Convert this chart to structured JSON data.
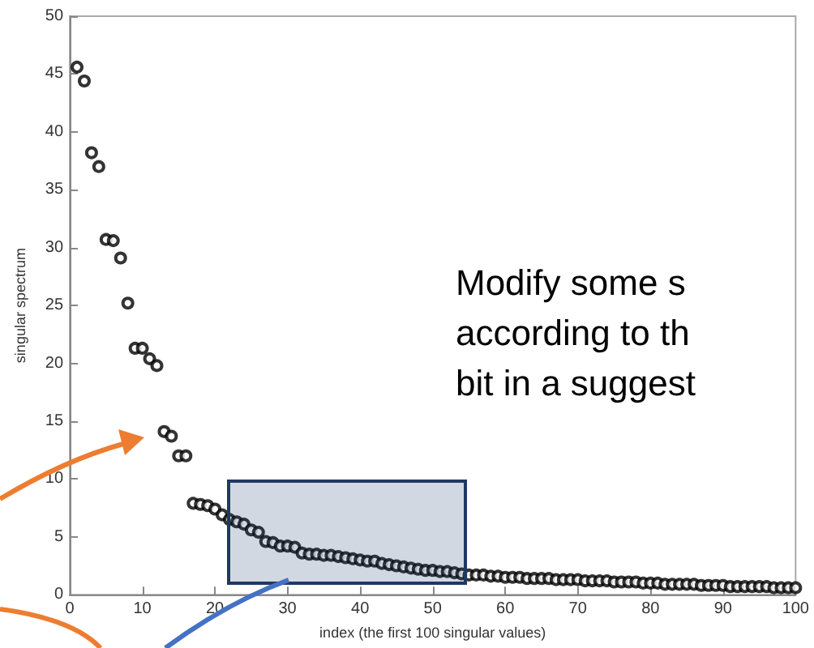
{
  "chart_data": {
    "type": "scatter",
    "xlabel": "index (the first 100 singular values)",
    "ylabel": "singular spectrum",
    "x": [
      1,
      2,
      3,
      4,
      5,
      6,
      7,
      8,
      9,
      10,
      11,
      12,
      13,
      14,
      15,
      16,
      17,
      18,
      19,
      20,
      21,
      22,
      23,
      24,
      25,
      26,
      27,
      28,
      29,
      30,
      31,
      32,
      33,
      34,
      35,
      36,
      37,
      38,
      39,
      40,
      41,
      42,
      43,
      44,
      45,
      46,
      47,
      48,
      49,
      50,
      51,
      52,
      53,
      54,
      55,
      56,
      57,
      58,
      59,
      60,
      61,
      62,
      63,
      64,
      65,
      66,
      67,
      68,
      69,
      70,
      71,
      72,
      73,
      74,
      75,
      76,
      77,
      78,
      79,
      80,
      81,
      82,
      83,
      84,
      85,
      86,
      87,
      88,
      89,
      90,
      91,
      92,
      93,
      94,
      95,
      96,
      97,
      98,
      99,
      100
    ],
    "values": [
      45.6,
      44.4,
      38.2,
      37.0,
      30.7,
      30.6,
      29.1,
      25.2,
      21.3,
      21.3,
      20.4,
      19.8,
      14.1,
      13.7,
      12.0,
      12.0,
      7.9,
      7.8,
      7.7,
      7.4,
      6.9,
      6.5,
      6.3,
      6.1,
      5.6,
      5.4,
      4.6,
      4.5,
      4.2,
      4.2,
      4.1,
      3.6,
      3.5,
      3.5,
      3.4,
      3.4,
      3.3,
      3.2,
      3.1,
      3.0,
      2.9,
      2.9,
      2.7,
      2.6,
      2.5,
      2.4,
      2.3,
      2.2,
      2.1,
      2.1,
      2.0,
      2.0,
      1.9,
      1.8,
      1.7,
      1.7,
      1.7,
      1.6,
      1.6,
      1.5,
      1.5,
      1.5,
      1.4,
      1.4,
      1.4,
      1.4,
      1.3,
      1.3,
      1.3,
      1.3,
      1.2,
      1.2,
      1.2,
      1.2,
      1.1,
      1.1,
      1.1,
      1.1,
      1.0,
      1.0,
      1.0,
      0.9,
      0.9,
      0.9,
      0.9,
      0.9,
      0.8,
      0.8,
      0.8,
      0.8,
      0.7,
      0.7,
      0.7,
      0.7,
      0.7,
      0.7,
      0.6,
      0.6,
      0.6,
      0.6
    ],
    "color": "#000000",
    "marker": "circle",
    "xlim": [
      0,
      100
    ],
    "xticks": [
      0,
      10,
      20,
      30,
      40,
      50,
      60,
      70,
      80,
      90,
      100
    ],
    "ylim": [
      0,
      50
    ],
    "yticks": [
      0,
      5,
      10,
      15,
      20,
      25,
      30,
      35,
      40,
      45,
      50
    ],
    "grid": false,
    "annotations": [
      "Modify some s\naccording to th\nbit in a suggest"
    ]
  }
}
